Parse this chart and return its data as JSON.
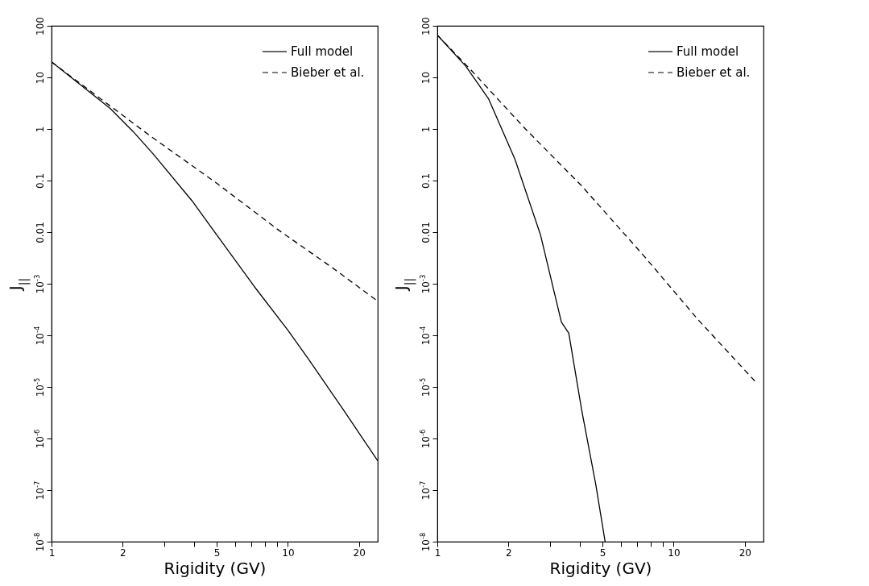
{
  "chart_data": [
    {
      "type": "line",
      "xlabel": "Rigidity (GV)",
      "ylabel": "J$_{||}$",
      "log": "xy",
      "grid": false,
      "legend": "top right",
      "xlim": [
        1,
        24
      ],
      "xticks": [
        1,
        2,
        {
          "value": 3,
          "label": null
        },
        {
          "value": 4,
          "label": null
        },
        5,
        {
          "value": 6,
          "label": null
        },
        {
          "value": 7,
          "label": null
        },
        {
          "value": 8,
          "label": null
        },
        {
          "value": 9,
          "label": null
        },
        10,
        20
      ],
      "ylim": [
        1e-08,
        100
      ],
      "yticks": [
        {
          "value": 1e-08,
          "label": "10$^{-8}$"
        },
        {
          "value": 1e-07,
          "label": "10$^{-7}$"
        },
        {
          "value": 1e-06,
          "label": "10$^{-6}$"
        },
        {
          "value": 1e-05,
          "label": "10$^{-5}$"
        },
        {
          "value": 0.0001,
          "label": "10$^{-4}$"
        },
        {
          "value": 0.001,
          "label": "10$^{-3}$"
        },
        0.01,
        0.1,
        1,
        10,
        100
      ],
      "series": [
        {
          "name": "Full model",
          "color": "#000000",
          "line_style": "solid",
          "x": [
            1,
            1.77,
            2.21,
            2.69,
            3.94,
            5.19,
            7.2,
            10,
            12.2,
            17.4,
            24
          ],
          "values": [
            20,
            2.5,
            0.9,
            0.33,
            0.04,
            0.007,
            0.00089,
            0.000126,
            3.5e-05,
            3.3e-06,
            3.7e-07
          ]
        },
        {
          "name": "Bieber et al.",
          "color": "#000000",
          "line_style": "dashed",
          "x": [
            1,
            1.09,
            1.77,
            2.63,
            4.93,
            9,
            15.3,
            24
          ],
          "values": [
            20,
            14.8,
            2.8,
            0.72,
            0.093,
            0.0115,
            0.0021,
            0.00046
          ]
        }
      ]
    },
    {
      "type": "line",
      "xlabel": "Rigidity (GV)",
      "ylabel": "J$_{||}$",
      "log": "xy",
      "grid": false,
      "legend": "top right",
      "xlim": [
        1,
        24
      ],
      "xticks": [
        1,
        2,
        {
          "value": 3,
          "label": null
        },
        {
          "value": 4,
          "label": null
        },
        5,
        {
          "value": 6,
          "label": null
        },
        {
          "value": 7,
          "label": null
        },
        {
          "value": 8,
          "label": null
        },
        {
          "value": 9,
          "label": null
        },
        10,
        20
      ],
      "ylim": [
        1e-08,
        100
      ],
      "yticks": [
        {
          "value": 1e-08,
          "label": "10$^{-8}$"
        },
        {
          "value": 1e-07,
          "label": "10$^{-7}$"
        },
        {
          "value": 1e-06,
          "label": "10$^{-6}$"
        },
        {
          "value": 1e-05,
          "label": "10$^{-5}$"
        },
        {
          "value": 0.0001,
          "label": "10$^{-4}$"
        },
        {
          "value": 0.001,
          "label": "10$^{-3}$"
        },
        0.01,
        0.1,
        1,
        10,
        100
      ],
      "series": [
        {
          "name": "Full model",
          "color": "#000000",
          "line_style": "solid",
          "x": [
            1,
            1.32,
            1.65,
            2.13,
            2.73,
            3.35,
            3.6,
            4.08,
            4.68,
            5.13
          ],
          "values": [
            66,
            16.5,
            3.8,
            0.26,
            0.009,
            0.00018,
            0.00011,
            3.6e-06,
            1.3e-07,
            1e-08
          ]
        },
        {
          "name": "Bieber et al.",
          "color": "#000000",
          "line_style": "dashed",
          "x": [
            1,
            1.39,
            2.36,
            4.08,
            7.47,
            12.7,
            22.6
          ],
          "values": [
            66,
            13.8,
            1,
            0.079,
            0.0035,
            0.0002,
            1.15e-05
          ]
        }
      ]
    }
  ]
}
